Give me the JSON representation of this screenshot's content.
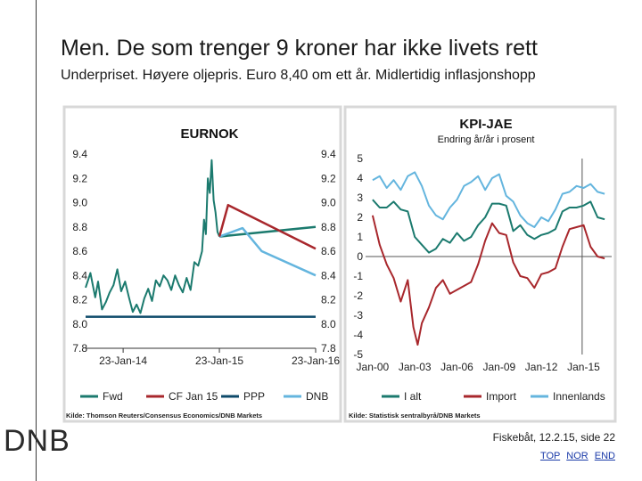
{
  "slide": {
    "title": "Men. De som trenger 9 kroner har ikke livets rett",
    "subtitle": "Underpriset. Høyere oljepris. Euro 8,40 om ett år. Midlertidig inflasjonshopp",
    "logo": "DNB",
    "footer": "Fiskebåt, 12.2.15, side 22",
    "nav": [
      "TOP",
      "NOR",
      "END"
    ]
  },
  "chart_data": [
    {
      "type": "line",
      "title": "EURNOK",
      "x_ticks": [
        "23-Jan-14",
        "23-Jan-15",
        "23-Jan-16"
      ],
      "y_ticks": [
        "9.4",
        "9.2",
        "9.0",
        "8.8",
        "8.6",
        "8.4",
        "8.2",
        "8.0",
        "7.8"
      ],
      "ylim": [
        7.8,
        9.4
      ],
      "xlim": [
        "2013-09",
        "2016-01"
      ],
      "source": "Kilde: Thomson Reuters/Consensus Economics/DNB Markets",
      "colors": {
        "fwd": "#1b7a6e",
        "cf": "#a8272c",
        "ppp": "#0d4a6a",
        "dnb": "#64b5de",
        "spot": "#1b7a6e"
      },
      "legend": [
        "Fwd",
        "CF Jan 15",
        "PPP",
        "DNB"
      ],
      "series": [
        {
          "key": "spot",
          "x": [
            2013.67,
            2013.72,
            2013.77,
            2013.8,
            2013.84,
            2013.88,
            2013.92,
            2013.96,
            2014.0,
            2014.04,
            2014.08,
            2014.12,
            2014.16,
            2014.2,
            2014.24,
            2014.28,
            2014.32,
            2014.36,
            2014.4,
            2014.44,
            2014.48,
            2014.52,
            2014.56,
            2014.6,
            2014.64,
            2014.68,
            2014.72,
            2014.76,
            2014.8,
            2014.84,
            2014.88,
            2014.9,
            2014.92,
            2014.94,
            2014.96,
            2014.98,
            2015.0,
            2015.02,
            2015.04,
            2015.06
          ],
          "y": [
            8.3,
            8.42,
            8.22,
            8.35,
            8.12,
            8.18,
            8.26,
            8.32,
            8.45,
            8.27,
            8.35,
            8.22,
            8.1,
            8.16,
            8.09,
            8.21,
            8.29,
            8.19,
            8.36,
            8.31,
            8.4,
            8.36,
            8.28,
            8.4,
            8.32,
            8.26,
            8.38,
            8.28,
            8.51,
            8.48,
            8.6,
            8.86,
            8.74,
            9.2,
            9.08,
            9.35,
            9.02,
            8.92,
            8.76,
            8.72
          ]
        },
        {
          "key": "cf",
          "name": "CF Jan 15",
          "x": [
            2015.06,
            2015.15,
            2016.06
          ],
          "y": [
            8.72,
            8.98,
            8.62
          ]
        },
        {
          "key": "fwd",
          "name": "Fwd",
          "x": [
            2015.06,
            2016.06
          ],
          "y": [
            8.72,
            8.8
          ]
        },
        {
          "key": "dnb",
          "name": "DNB",
          "x": [
            2015.06,
            2015.3,
            2015.5,
            2016.06
          ],
          "y": [
            8.72,
            8.79,
            8.6,
            8.4
          ]
        },
        {
          "key": "ppp",
          "name": "PPP",
          "x": [
            2013.67,
            2016.06
          ],
          "y": [
            8.06,
            8.06
          ]
        }
      ]
    },
    {
      "type": "line",
      "title": "KPI-JAE",
      "subtitle": "Endring år/år i prosent",
      "x_ticks": [
        "Jan-00",
        "Jan-03",
        "Jan-06",
        "Jan-09",
        "Jan-12",
        "Jan-15"
      ],
      "y_ticks": [
        "5",
        "4",
        "3",
        "2",
        "1",
        "0",
        "-1",
        "-2",
        "-3",
        "-4",
        "-5"
      ],
      "ylim": [
        -5,
        5
      ],
      "xlim": [
        1999.5,
        2017.0
      ],
      "vertical_marker": 2014.9,
      "source": "Kilde: Statistisk sentralbyrå/DNB Markets",
      "colors": {
        "ialt": "#1b7a6e",
        "import": "#a8272c",
        "innenl": "#64b5de"
      },
      "legend": [
        "I alt",
        "Import",
        "Innenlands"
      ],
      "series": [
        {
          "key": "innenl",
          "name": "Innenlands",
          "x": [
            2000.0,
            2000.5,
            2001.0,
            2001.5,
            2002.0,
            2002.5,
            2003.0,
            2003.5,
            2004.0,
            2004.5,
            2005.0,
            2005.5,
            2006.0,
            2006.5,
            2007.0,
            2007.5,
            2008.0,
            2008.5,
            2009.0,
            2009.5,
            2010.0,
            2010.5,
            2011.0,
            2011.5,
            2012.0,
            2012.5,
            2013.0,
            2013.5,
            2014.0,
            2014.5,
            2015.0,
            2015.5,
            2016.0,
            2016.5
          ],
          "y": [
            3.9,
            4.1,
            3.5,
            3.9,
            3.4,
            4.1,
            4.3,
            3.6,
            2.6,
            2.1,
            1.9,
            2.5,
            2.9,
            3.6,
            3.8,
            4.1,
            3.4,
            4.0,
            4.2,
            3.1,
            2.8,
            2.1,
            1.7,
            1.5,
            2.0,
            1.8,
            2.4,
            3.2,
            3.3,
            3.6,
            3.5,
            3.7,
            3.3,
            3.2
          ]
        },
        {
          "key": "ialt",
          "name": "I alt",
          "x": [
            2000.0,
            2000.5,
            2001.0,
            2001.5,
            2002.0,
            2002.5,
            2003.0,
            2003.5,
            2004.0,
            2004.5,
            2005.0,
            2005.5,
            2006.0,
            2006.5,
            2007.0,
            2007.5,
            2008.0,
            2008.5,
            2009.0,
            2009.5,
            2010.0,
            2010.5,
            2011.0,
            2011.5,
            2012.0,
            2012.5,
            2013.0,
            2013.5,
            2014.0,
            2014.5,
            2015.0,
            2015.5,
            2016.0,
            2016.5
          ],
          "y": [
            2.9,
            2.5,
            2.5,
            2.8,
            2.4,
            2.3,
            1.0,
            0.6,
            0.2,
            0.4,
            0.9,
            0.7,
            1.2,
            0.8,
            1.0,
            1.6,
            2.0,
            2.7,
            2.7,
            2.6,
            1.3,
            1.6,
            1.1,
            0.9,
            1.1,
            1.2,
            1.4,
            2.3,
            2.5,
            2.5,
            2.6,
            2.8,
            2.0,
            1.9
          ]
        },
        {
          "key": "import",
          "name": "Import",
          "x": [
            2000.0,
            2000.5,
            2001.0,
            2001.5,
            2002.0,
            2002.5,
            2002.9,
            2003.2,
            2003.5,
            2004.0,
            2004.5,
            2005.0,
            2005.5,
            2006.0,
            2006.5,
            2007.0,
            2007.5,
            2008.0,
            2008.5,
            2009.0,
            2009.5,
            2010.0,
            2010.5,
            2011.0,
            2011.5,
            2012.0,
            2012.5,
            2013.0,
            2013.5,
            2014.0,
            2014.5,
            2015.0,
            2015.5,
            2016.0,
            2016.5
          ],
          "y": [
            2.1,
            0.6,
            -0.4,
            -1.1,
            -2.3,
            -1.2,
            -3.6,
            -4.5,
            -3.4,
            -2.6,
            -1.6,
            -1.2,
            -1.9,
            -1.7,
            -1.5,
            -1.3,
            -0.4,
            0.8,
            1.7,
            1.2,
            1.1,
            -0.3,
            -1.0,
            -1.1,
            -1.6,
            -0.9,
            -0.8,
            -0.6,
            0.5,
            1.4,
            1.5,
            1.6,
            0.5,
            0.0,
            -0.1
          ]
        }
      ]
    }
  ]
}
